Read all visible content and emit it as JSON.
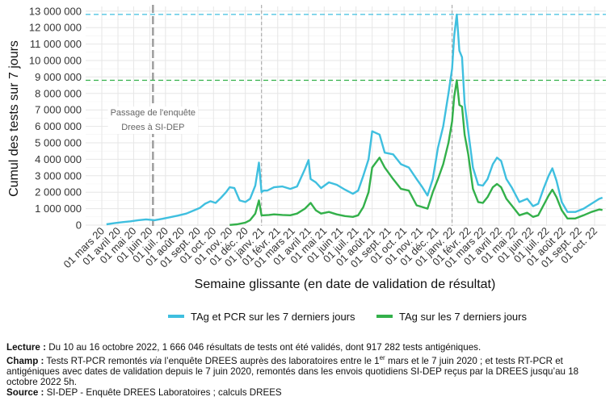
{
  "colors": {
    "total": "#3fbfdf",
    "tag": "#33b04a",
    "total_ref_line": "#3fbfdf",
    "tag_ref_line": "#33b04a",
    "grid": "#e6e6e6",
    "event_line": "#a0a0a0"
  },
  "chart_data": {
    "type": "line",
    "xlabel": "Semaine glissante (en date de validation de résultat)",
    "ylabel": "Cumul des tests sur 7 jours",
    "ylim": [
      0,
      13000000
    ],
    "y_ticks": [
      "0",
      "1 000 000",
      "2 000 000",
      "3 000 000",
      "4 000 000",
      "5 000 000",
      "6 000 000",
      "7 000 000",
      "8 000 000",
      "9 000 000",
      "10 000 000",
      "11 000 000",
      "12 000 000",
      "13 000 000"
    ],
    "x_ticks": [
      "01 mars 20",
      "01 avril 20",
      "01 mai 20",
      "01 juin 20",
      "01 juil. 20",
      "01 août 20",
      "01 sept. 20",
      "01 oct. 20",
      "01 nov. 20",
      "01 déc. 20",
      "01 janv. 21",
      "01 févr. 21",
      "01 mars 21",
      "01 avril 21",
      "01 mai 21",
      "01 juin 21",
      "01 juil. 21",
      "01 août 21",
      "01 sept. 21",
      "01 oct. 21",
      "01 nov. 21",
      "01 déc. 21",
      "01 janv. 22",
      "01 févr. 22",
      "01 mars 22",
      "01 avril 22",
      "01 mai 22",
      "01 juin 22",
      "01 juil. 22",
      "01 août 22",
      "01 sept. 22",
      "01 oct. 22"
    ],
    "annotation": "Passage de l'enquête\nDrees à SI-DEP",
    "grid": true,
    "legend_position": "bottom",
    "series": [
      {
        "name": "TAg et PCR sur les 7 derniers jours",
        "x": [
          "2020-03-10",
          "2020-03-25",
          "2020-04-10",
          "2020-04-25",
          "2020-05-10",
          "2020-05-25",
          "2020-06-10",
          "2020-06-25",
          "2020-07-10",
          "2020-07-25",
          "2020-08-10",
          "2020-08-25",
          "2020-09-05",
          "2020-09-15",
          "2020-09-25",
          "2020-10-05",
          "2020-10-15",
          "2020-10-25",
          "2020-11-01",
          "2020-11-10",
          "2020-11-20",
          "2020-12-01",
          "2020-12-10",
          "2020-12-20",
          "2020-12-27",
          "2021-01-01",
          "2021-01-05",
          "2021-01-12",
          "2021-01-25",
          "2021-02-10",
          "2021-02-25",
          "2021-03-10",
          "2021-03-25",
          "2021-04-01",
          "2021-04-05",
          "2021-04-15",
          "2021-04-25",
          "2021-05-10",
          "2021-05-25",
          "2021-06-10",
          "2021-06-25",
          "2021-07-05",
          "2021-07-15",
          "2021-07-25",
          "2021-08-01",
          "2021-08-15",
          "2021-08-25",
          "2021-09-10",
          "2021-09-25",
          "2021-10-10",
          "2021-10-25",
          "2021-11-05",
          "2021-11-15",
          "2021-11-25",
          "2021-12-05",
          "2021-12-15",
          "2021-12-25",
          "2022-01-01",
          "2022-01-05",
          "2022-01-10",
          "2022-01-15",
          "2022-01-20",
          "2022-01-25",
          "2022-02-01",
          "2022-02-10",
          "2022-02-20",
          "2022-03-01",
          "2022-03-10",
          "2022-03-20",
          "2022-03-28",
          "2022-04-05",
          "2022-04-15",
          "2022-04-25",
          "2022-05-10",
          "2022-05-25",
          "2022-06-05",
          "2022-06-15",
          "2022-06-25",
          "2022-07-05",
          "2022-07-12",
          "2022-07-20",
          "2022-07-30",
          "2022-08-10",
          "2022-08-25",
          "2022-09-10",
          "2022-09-25",
          "2022-10-10",
          "2022-10-16"
        ],
        "values": [
          50000,
          120000,
          180000,
          230000,
          300000,
          350000,
          300000,
          380000,
          480000,
          580000,
          700000,
          900000,
          1050000,
          1300000,
          1450000,
          1350000,
          1650000,
          2000000,
          2300000,
          2250000,
          1500000,
          1400000,
          1600000,
          2400000,
          3800000,
          2000000,
          2100000,
          2100000,
          2300000,
          2350000,
          2200000,
          2350000,
          3400000,
          3950000,
          2800000,
          2600000,
          2250000,
          2600000,
          2450000,
          2150000,
          1900000,
          2100000,
          3000000,
          4000000,
          5700000,
          5500000,
          4400000,
          4300000,
          3700000,
          3500000,
          2800000,
          2300000,
          1800000,
          2800000,
          4700000,
          6000000,
          8000000,
          9500000,
          11500000,
          12800000,
          10600000,
          10200000,
          7400000,
          5700000,
          3500000,
          2450000,
          2400000,
          2800000,
          3700000,
          4100000,
          3900000,
          2800000,
          2300000,
          1400000,
          1600000,
          1150000,
          1300000,
          2200000,
          3000000,
          3450000,
          2700000,
          1400000,
          800000,
          800000,
          1000000,
          1300000,
          1600000,
          1666046
        ]
      },
      {
        "name": "TAg sur les 7 derniers jours",
        "x": [
          "2020-11-01",
          "2020-11-15",
          "2020-12-01",
          "2020-12-10",
          "2020-12-20",
          "2020-12-27",
          "2021-01-01",
          "2021-01-05",
          "2021-01-15",
          "2021-01-25",
          "2021-02-10",
          "2021-02-25",
          "2021-03-10",
          "2021-03-25",
          "2021-04-05",
          "2021-04-15",
          "2021-04-25",
          "2021-05-10",
          "2021-05-25",
          "2021-06-10",
          "2021-06-25",
          "2021-07-05",
          "2021-07-15",
          "2021-07-25",
          "2021-08-01",
          "2021-08-15",
          "2021-08-25",
          "2021-09-10",
          "2021-09-25",
          "2021-10-10",
          "2021-10-25",
          "2021-11-05",
          "2021-11-15",
          "2021-11-25",
          "2021-12-05",
          "2021-12-15",
          "2021-12-25",
          "2022-01-01",
          "2022-01-05",
          "2022-01-10",
          "2022-01-15",
          "2022-01-20",
          "2022-01-25",
          "2022-02-01",
          "2022-02-10",
          "2022-02-20",
          "2022-03-01",
          "2022-03-10",
          "2022-03-20",
          "2022-03-28",
          "2022-04-05",
          "2022-04-15",
          "2022-04-25",
          "2022-05-10",
          "2022-05-25",
          "2022-06-05",
          "2022-06-15",
          "2022-06-25",
          "2022-07-05",
          "2022-07-12",
          "2022-07-20",
          "2022-07-30",
          "2022-08-10",
          "2022-08-25",
          "2022-09-10",
          "2022-09-25",
          "2022-10-10",
          "2022-10-16"
        ],
        "values": [
          10000,
          50000,
          150000,
          300000,
          700000,
          1500000,
          600000,
          600000,
          620000,
          650000,
          620000,
          600000,
          700000,
          1000000,
          1350000,
          900000,
          700000,
          800000,
          650000,
          550000,
          500000,
          600000,
          1100000,
          2000000,
          3500000,
          4100000,
          3500000,
          2800000,
          2200000,
          2100000,
          1200000,
          1100000,
          1000000,
          2000000,
          2800000,
          3700000,
          5000000,
          6300000,
          7800000,
          8800000,
          7300000,
          7200000,
          5500000,
          4300000,
          2200000,
          1400000,
          1350000,
          1700000,
          2300000,
          2500000,
          2300000,
          1600000,
          1200000,
          600000,
          750000,
          500000,
          600000,
          1200000,
          1800000,
          2150000,
          1700000,
          900000,
          400000,
          400000,
          600000,
          800000,
          950000,
          917282
        ]
      }
    ]
  },
  "notes": {
    "lecture_label": "Lecture :",
    "lecture_text": " Du 10 au 16 octobre 2022, 1 666 046 résultats de tests ont été validés, dont 917 282 tests antigéniques.",
    "champ_label": "Champ :",
    "champ_text_1": " Tests RT-PCR remontés ",
    "champ_via": "via",
    "champ_text_2": " l’enquête DREES auprès des laboratoires entre le 1",
    "champ_sup": "er",
    "champ_text_3": " mars et le 7 juin 2020 ; et tests RT-PCR et antigéniques avec dates de validation depuis le 7 juin 2020, remontés dans les envois quotidiens SI-DEP reçus par la DREES jusqu’au 18 octobre 2022 5h.",
    "source_label": "Source :",
    "source_text": " SI-DEP - Enquête DREES Laboratoires ; calculs DREES"
  }
}
